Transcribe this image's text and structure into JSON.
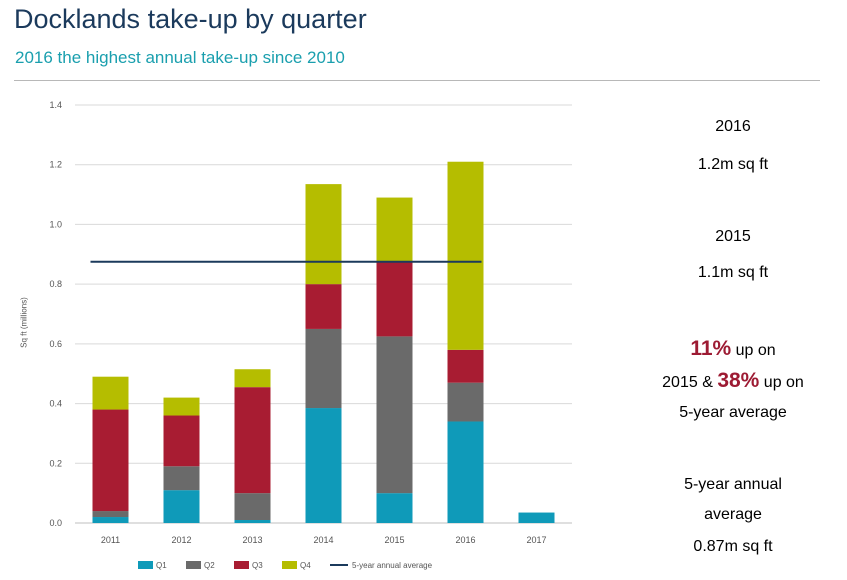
{
  "header": {
    "title": "Docklands take-up by quarter",
    "subtitle": "2016 the highest annual take-up since 2010"
  },
  "chart_data": {
    "type": "bar",
    "stacked": true,
    "categories": [
      "2011",
      "2012",
      "2013",
      "2014",
      "2015",
      "2016",
      "2017"
    ],
    "series": [
      {
        "name": "Q1",
        "color": "#0f9ab9",
        "values": [
          0.02,
          0.11,
          0.01,
          0.385,
          0.1,
          0.34,
          0.035
        ]
      },
      {
        "name": "Q2",
        "color": "#6a6a6a",
        "values": [
          0.02,
          0.08,
          0.09,
          0.265,
          0.525,
          0.13,
          0
        ]
      },
      {
        "name": "Q3",
        "color": "#a81c32",
        "values": [
          0.34,
          0.17,
          0.355,
          0.15,
          0.25,
          0.11,
          0
        ]
      },
      {
        "name": "Q4",
        "color": "#b5bd00",
        "values": [
          0.11,
          0.06,
          0.06,
          0.335,
          0.215,
          0.63,
          0
        ]
      }
    ],
    "reference_line": {
      "name": "5-year annual average",
      "value": 0.875,
      "from": "2011",
      "to": "2016",
      "color": "#1b3a5c"
    },
    "xlabel": "",
    "ylabel": "Sq ft (millions)",
    "ylim": [
      0,
      1.4
    ],
    "yticks": [
      "0.0",
      "0.2",
      "0.4",
      "0.6",
      "0.8",
      "1.0",
      "1.2",
      "1.4"
    ],
    "grid": true,
    "legend": "bottom"
  },
  "stats": {
    "year_2016": "2016",
    "value_2016": "1.2m sq ft",
    "year_2015": "2015",
    "value_2015": "1.1m sq ft",
    "growth_pct_1": "11%",
    "growth_text_1": " up on",
    "growth_text_2": "2015 & ",
    "growth_pct_2": "38%",
    "growth_text_3": " up on",
    "growth_text_4": "5-year average",
    "avg_label_1": "5-year annual",
    "avg_label_2": "average",
    "avg_value": "0.87m sq ft"
  }
}
